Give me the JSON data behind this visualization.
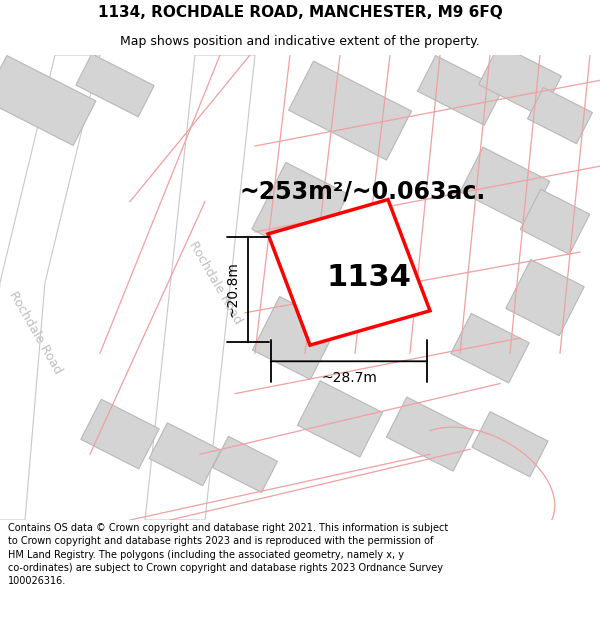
{
  "title": "1134, ROCHDALE ROAD, MANCHESTER, M9 6FQ",
  "subtitle": "Map shows position and indicative extent of the property.",
  "footer": "Contains OS data © Crown copyright and database right 2021. This information is subject to Crown copyright and database rights 2023 and is reproduced with the permission of HM Land Registry. The polygons (including the associated geometry, namely x, y co-ordinates) are subject to Crown copyright and database rights 2023 Ordnance Survey 100026316.",
  "area_label": "~253m²/~0.063ac.",
  "width_label": "~28.7m",
  "height_label": "~20.8m",
  "property_number": "1134",
  "bg_color": "#ffffff",
  "map_bg": "#ebebeb",
  "road_color": "#ffffff",
  "road_line_color": "#c8c8c8",
  "building_color": "#d4d4d4",
  "building_line_color": "#b8b8b8",
  "plot_line_color": "#f0a0a0",
  "highlight_color": "#ff0000",
  "highlight_fill": "#ffffff",
  "dim_line_color": "#000000",
  "title_fontsize": 11,
  "subtitle_fontsize": 9,
  "footer_fontsize": 7,
  "area_label_fontsize": 17,
  "dim_label_fontsize": 10,
  "property_num_fontsize": 22,
  "road_label_fontsize": 9,
  "road_label_color": "#c0bebe"
}
